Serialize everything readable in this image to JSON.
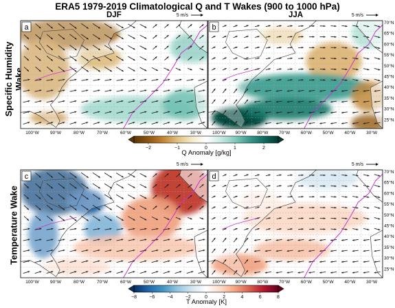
{
  "title": "ERA5 1979-2019 Climatological Q and T Wakes (900 to 1000 hPa)",
  "seasons": [
    "DJF",
    "JJA"
  ],
  "row_labels": [
    "Specific Humidity\nWake",
    "Temperature Wake"
  ],
  "row_label_q_lines": [
    "Specific Humidity",
    "Wake"
  ],
  "row_label_t": "Temperature Wake",
  "panels": [
    {
      "letter": "a",
      "row": "q",
      "season": "DJF"
    },
    {
      "letter": "b",
      "row": "q",
      "season": "JJA"
    },
    {
      "letter": "c",
      "row": "t",
      "season": "DJF"
    },
    {
      "letter": "d",
      "row": "t",
      "season": "JJA"
    }
  ],
  "wind_ref": "5 m/s",
  "lon_ticks": [
    "100°W",
    "90°W",
    "80°W",
    "70°W",
    "60°W",
    "50°W",
    "40°W",
    "30°W"
  ],
  "lat_ticks": [
    "70°N",
    "65°N",
    "60°N",
    "55°N",
    "50°N",
    "45°N",
    "40°N",
    "35°N",
    "30°N",
    "25°N"
  ],
  "colorbars": {
    "q": {
      "label": "Q Anomaly [g/kg]",
      "ticks": [
        "−2",
        "−1",
        "0",
        "1",
        "2"
      ],
      "range": [
        -2.5,
        2.5
      ],
      "colors": [
        "#5c3704",
        "#8c5610",
        "#bf8331",
        "#dfc07e",
        "#f4e8c9",
        "#ffffff",
        "#cbeae4",
        "#82cbbf",
        "#3a9a8d",
        "#0f6c60",
        "#003a30"
      ]
    },
    "t": {
      "label": "T Anomaly [K]",
      "ticks": [
        "−8",
        "−6",
        "−4",
        "−2",
        "0",
        "2",
        "4",
        "6",
        "8"
      ],
      "range": [
        -8,
        8
      ],
      "colors": [
        "#053061",
        "#2166ac",
        "#4393c3",
        "#92c5de",
        "#d1e5f0",
        "#ffffff",
        "#fddbc7",
        "#f4a582",
        "#d6604d",
        "#b2182b",
        "#67001f"
      ]
    }
  },
  "colors": {
    "land": "#ffffff",
    "coast": "#444444",
    "isoline": "#cc33cc",
    "arrow": "#222222",
    "grid": "#aaaaaa"
  }
}
